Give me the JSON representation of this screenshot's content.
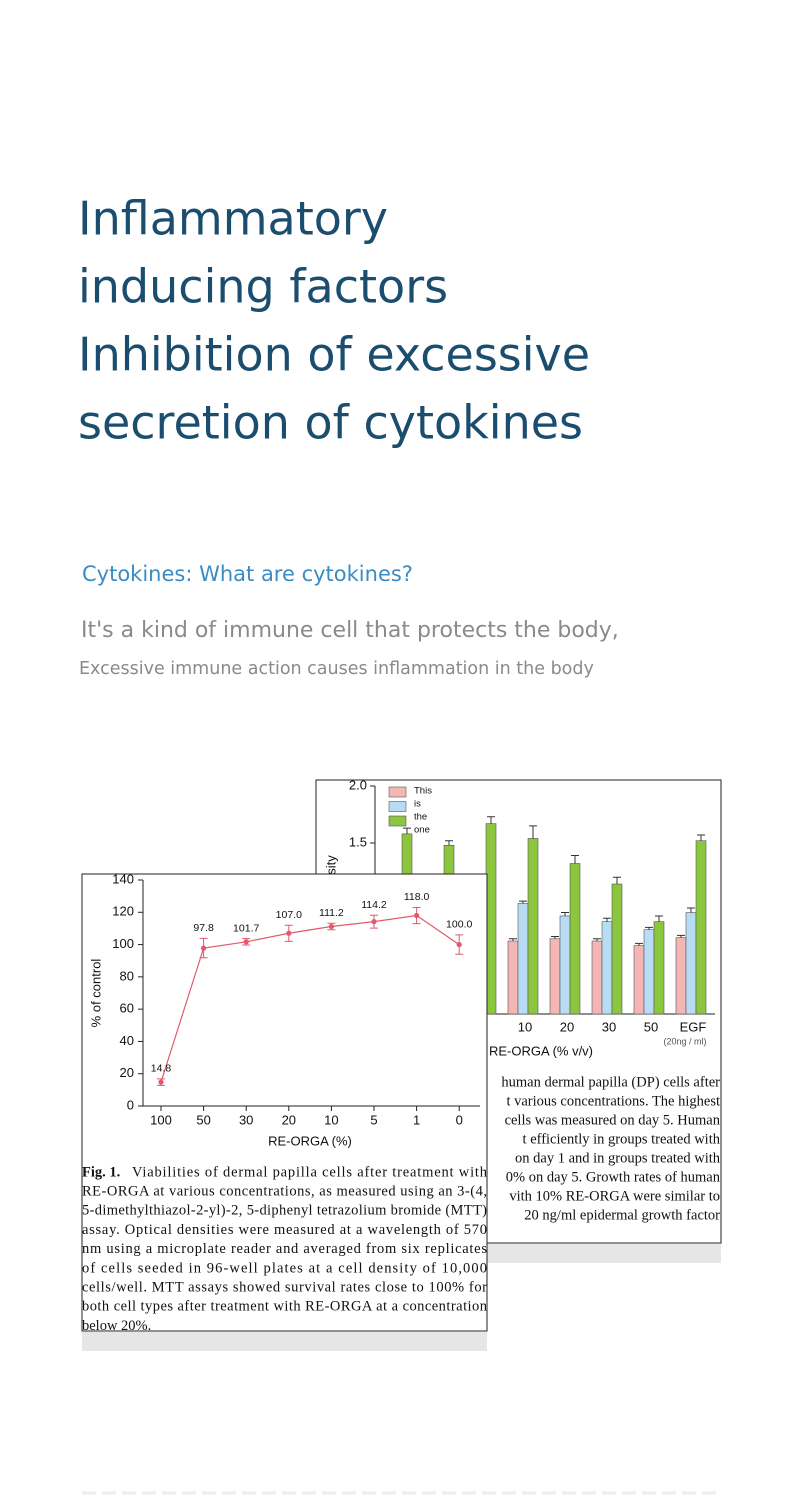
{
  "heading": [
    "Inflammatory",
    "inducing factors",
    "Inhibition of excessive",
    "secretion of cytokines"
  ],
  "intro": {
    "subtitle": "Cytokines: What are cytokines?",
    "lead": "It's a kind of immune cell that protects the body,",
    "detail": "Excessive immune action causes inflammation in the body"
  },
  "figures": [
    {
      "chart_data": {
        "type": "bar",
        "y_label": "sity",
        "x_label": "RE-ORGA (% v/v)",
        "categories": [
          null,
          null,
          null,
          "10",
          "20",
          "30",
          "50",
          "EGF"
        ],
        "category_note": "(20ng / ml)",
        "legend": [
          "This",
          "is",
          "the",
          "one"
        ],
        "series": [
          {
            "color": "#f4b6b4",
            "values": [
              null,
              null,
              null,
              0.64,
              0.66,
              0.64,
              0.6,
              0.67
            ],
            "errors": [
              null,
              null,
              null,
              0.02,
              0.02,
              0.02,
              0.02,
              0.02
            ]
          },
          {
            "color": "#b8dcf3",
            "values": [
              null,
              null,
              null,
              0.97,
              0.86,
              0.81,
              0.74,
              0.89
            ],
            "errors": [
              null,
              null,
              null,
              0.02,
              0.03,
              0.03,
              0.02,
              0.04
            ]
          },
          {
            "color": "#8cc63f",
            "values": [
              1.58,
              1.48,
              1.67,
              1.54,
              1.32,
              1.14,
              0.81,
              1.52
            ],
            "errors": [
              0.05,
              0.04,
              0.06,
              0.11,
              0.07,
              0.06,
              0.05,
              0.05
            ]
          }
        ],
        "ylim": [
          0,
          2.0
        ],
        "yticks": [
          {
            "value": 1.5,
            "label": "1.5"
          },
          {
            "value": 2.0,
            "label": "2.0"
          }
        ],
        "caption": [
          "human dermal papilla (DP) cells after",
          "t various concentrations. The highest",
          "cells was measured on day 5. Human",
          "t efficiently in groups treated with",
          "on day 1 and in groups treated with",
          "0% on day 5. Growth rates of human",
          "vith 10% RE-ORGA were similar to",
          "20 ng/ml epidermal growth factor"
        ]
      }
    },
    {
      "chart_data": {
        "type": "line",
        "y_label": "% of control",
        "x_label": "RE-ORGA (%)",
        "categories": [
          "100",
          "50",
          "30",
          "20",
          "10",
          "5",
          "1",
          "0"
        ],
        "color": "#e05a6e",
        "values": [
          14.8,
          97.8,
          101.7,
          107.0,
          111.2,
          114.2,
          118.0,
          100.0
        ],
        "value_labels": [
          "14.8",
          "97.8",
          "101.7",
          "107.0",
          "111.2",
          "114.2",
          "118.0",
          "100.0"
        ],
        "errors": [
          2,
          6,
          2,
          5,
          2,
          4,
          5,
          6
        ],
        "ylim": [
          0,
          140
        ],
        "yticks": [
          0,
          20,
          40,
          60,
          80,
          100,
          120,
          140
        ],
        "caption_label": "Fig. 1.",
        "caption": [
          "Viabilities of dermal papilla cells after treatment with",
          "RE-ORGA at various concentrations, as measured using an 3-(4,",
          "5-dimethylthiazol-2-yl)-2, 5-diphenyl tetrazolium bromide (MTT)",
          "assay. Optical densities were measured at a wavelength of 570",
          "nm using a microplate reader and averaged from six replicates",
          "of cells seeded in 96-well plates at a cell density of 10,000",
          "cells/well. MTT assays showed survival rates close to 100% for",
          "both cell types after treatment with RE-ORGA at a concentration",
          "below 20%."
        ]
      }
    }
  ]
}
